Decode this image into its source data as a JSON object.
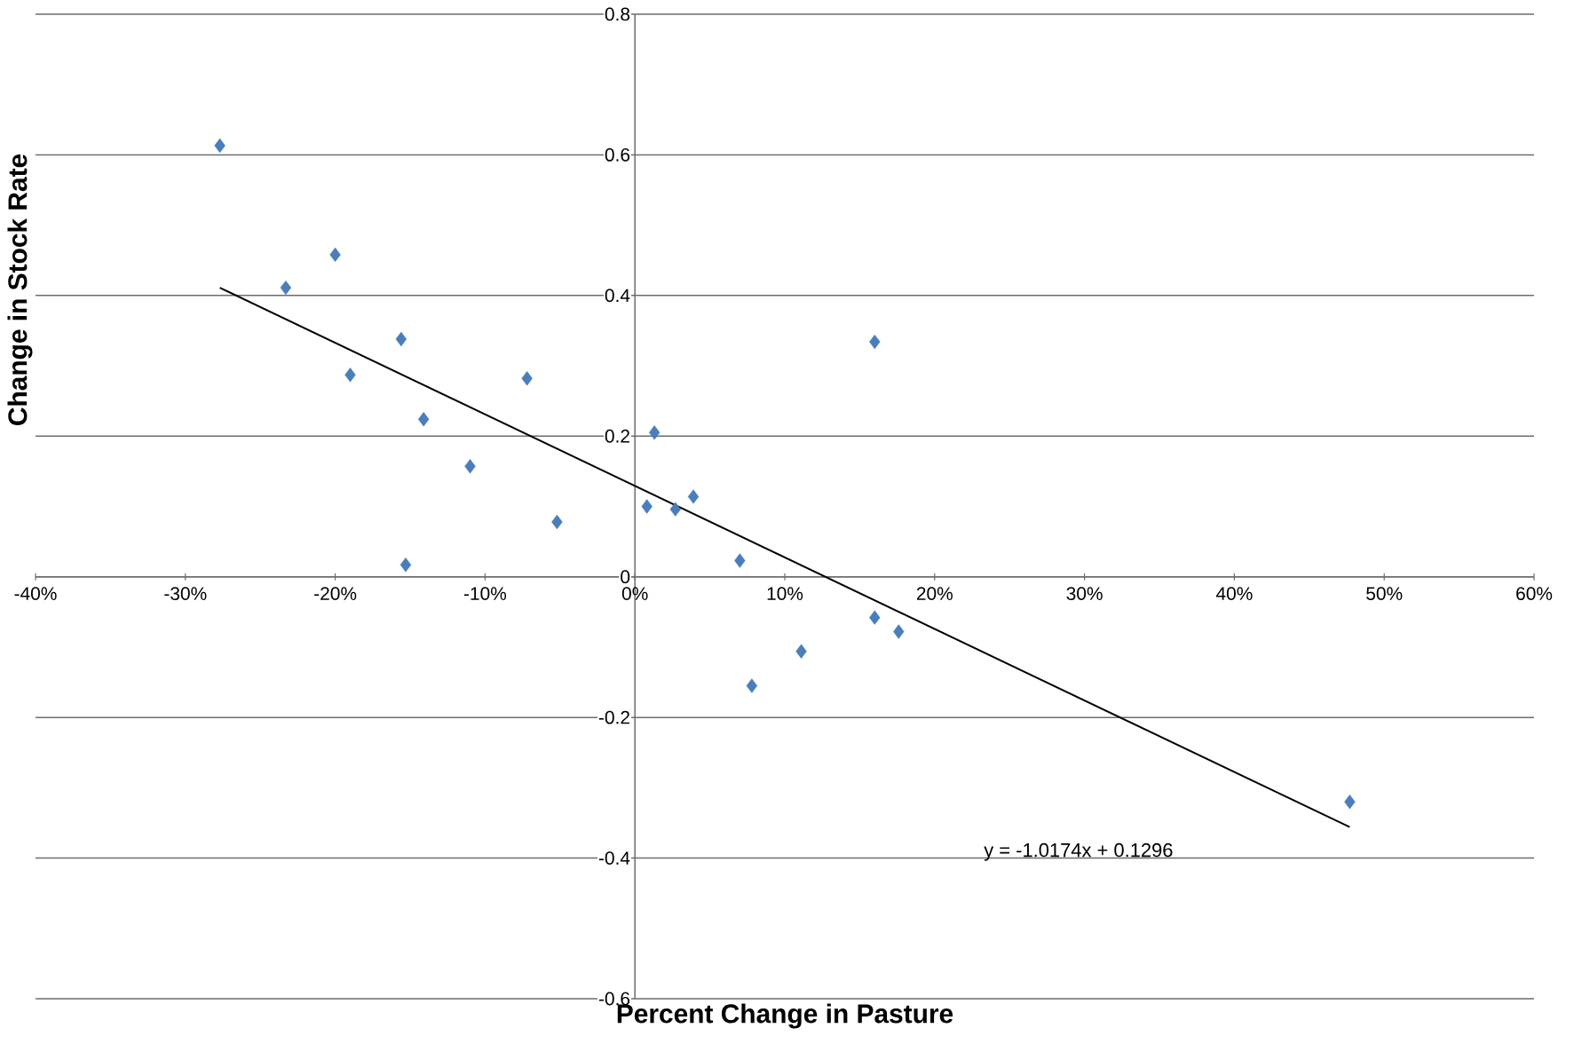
{
  "chart_data": {
    "type": "scatter",
    "xlabel": "Percent Change in Pasture",
    "ylabel": "Change in Stock Rate",
    "xlim": [
      -0.4,
      0.6
    ],
    "xticks": [
      {
        "value": -0.4,
        "label": "-40%"
      },
      {
        "value": -0.3,
        "label": "-30%"
      },
      {
        "value": -0.2,
        "label": "-20%"
      },
      {
        "value": -0.1,
        "label": "-10%"
      },
      {
        "value": 0,
        "label": "0%"
      },
      {
        "value": 0.1,
        "label": "10%"
      },
      {
        "value": 0.2,
        "label": "20%"
      },
      {
        "value": 0.3,
        "label": "30%"
      },
      {
        "value": 0.4,
        "label": "40%"
      },
      {
        "value": 0.5,
        "label": "50%"
      },
      {
        "value": 0.6,
        "label": "60%"
      }
    ],
    "ylim": [
      -0.6,
      0.8
    ],
    "yticks": [
      -0.6,
      -0.4,
      -0.2,
      0,
      0.2,
      0.4,
      0.6,
      0.8
    ],
    "grid": "y",
    "series": [
      {
        "marker": "diamond",
        "color": "#4a7ebb",
        "x": [
          -0.277,
          -0.233,
          -0.2,
          -0.156,
          -0.19,
          -0.141,
          -0.11,
          -0.072,
          -0.052,
          -0.153,
          0.013,
          0.008,
          0.027,
          0.039,
          0.07,
          0.16,
          0.16,
          0.176,
          0.111,
          0.078,
          0.477
        ],
        "values": [
          0.613,
          0.411,
          0.458,
          0.338,
          0.287,
          0.224,
          0.157,
          0.282,
          0.078,
          0.017,
          0.205,
          0.1,
          0.096,
          0.114,
          0.023,
          0.334,
          -0.058,
          -0.078,
          -0.106,
          -0.155,
          -0.32
        ]
      },
      {
        "type": "line",
        "color": "#000000",
        "x": [
          -0.277,
          0.477
        ],
        "values": [
          0.411,
          -0.356
        ]
      }
    ],
    "annotations": [
      "y = -1.0174x + 0.1296"
    ]
  }
}
